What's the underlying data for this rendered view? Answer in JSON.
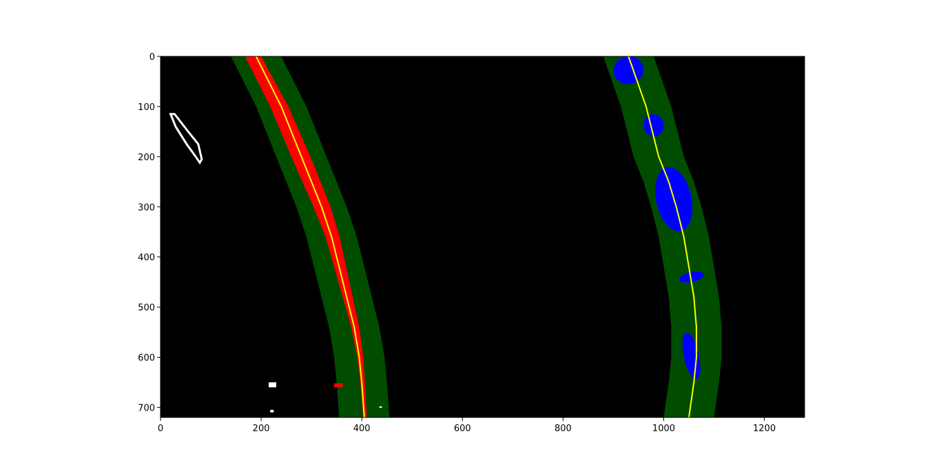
{
  "chart_data": {
    "type": "image",
    "xlim": [
      0,
      1280
    ],
    "ylim": [
      720,
      0
    ],
    "x_ticks": [
      "0",
      "200",
      "400",
      "600",
      "800",
      "1000",
      "1200"
    ],
    "y_ticks": [
      "0",
      "100",
      "200",
      "300",
      "400",
      "500",
      "600",
      "700"
    ],
    "colors": {
      "background": "#000000",
      "search_window": "#004d00",
      "left_lane_pixels": "#ff0000",
      "right_lane_pixels": "#0000ff",
      "fit_line": "#ffff00",
      "noise_pixels": "#ffffff"
    },
    "search_margin": 50,
    "left_fit": {
      "points": [
        [
          190,
          0
        ],
        [
          240,
          100
        ],
        [
          280,
          200
        ],
        [
          300,
          250
        ],
        [
          320,
          300
        ],
        [
          340,
          360
        ],
        [
          355,
          420
        ],
        [
          370,
          480
        ],
        [
          385,
          540
        ],
        [
          395,
          600
        ],
        [
          400,
          650
        ],
        [
          405,
          720
        ]
      ],
      "note_points_units": "image pixels (x, y)"
    },
    "right_fit": {
      "points": [
        [
          930,
          0
        ],
        [
          965,
          100
        ],
        [
          990,
          200
        ],
        [
          1010,
          250
        ],
        [
          1025,
          300
        ],
        [
          1040,
          360
        ],
        [
          1050,
          420
        ],
        [
          1060,
          480
        ],
        [
          1065,
          540
        ],
        [
          1065,
          600
        ],
        [
          1060,
          650
        ],
        [
          1050,
          720
        ]
      ]
    },
    "left_lane_pixels": [
      {
        "x": [
          165,
          245
        ],
        "y": [
          0,
          100
        ]
      },
      {
        "x": [
          195,
          285
        ],
        "y": [
          100,
          200
        ]
      },
      {
        "x": [
          235,
          320
        ],
        "y": [
          200,
          300
        ]
      },
      {
        "x": [
          275,
          350
        ],
        "y": [
          300,
          400
        ]
      },
      {
        "x": [
          300,
          365
        ],
        "y": [
          400,
          500
        ]
      },
      {
        "x": [
          310,
          360
        ],
        "y": [
          500,
          600
        ]
      },
      {
        "x": [
          310,
          355
        ],
        "y": [
          600,
          720
        ]
      }
    ],
    "right_lane_pixels": [
      {
        "x": [
          900,
          960
        ],
        "y": [
          0,
          55
        ]
      },
      {
        "x": [
          960,
          1000
        ],
        "y": [
          115,
          160
        ]
      },
      {
        "x": [
          985,
          1055
        ],
        "y": [
          220,
          350
        ]
      },
      {
        "x": [
          1030,
          1080
        ],
        "y": [
          430,
          450
        ]
      },
      {
        "x": [
          1040,
          1070
        ],
        "y": [
          550,
          645
        ]
      }
    ],
    "noise_pixels": [
      {
        "x": [
          20,
          80
        ],
        "y": [
          115,
          210
        ]
      },
      {
        "x": [
          215,
          230
        ],
        "y": [
          650,
          660
        ]
      },
      {
        "x": [
          218,
          225
        ],
        "y": [
          705,
          710
        ]
      },
      {
        "x": [
          435,
          440
        ],
        "y": [
          698,
          700
        ]
      }
    ]
  }
}
